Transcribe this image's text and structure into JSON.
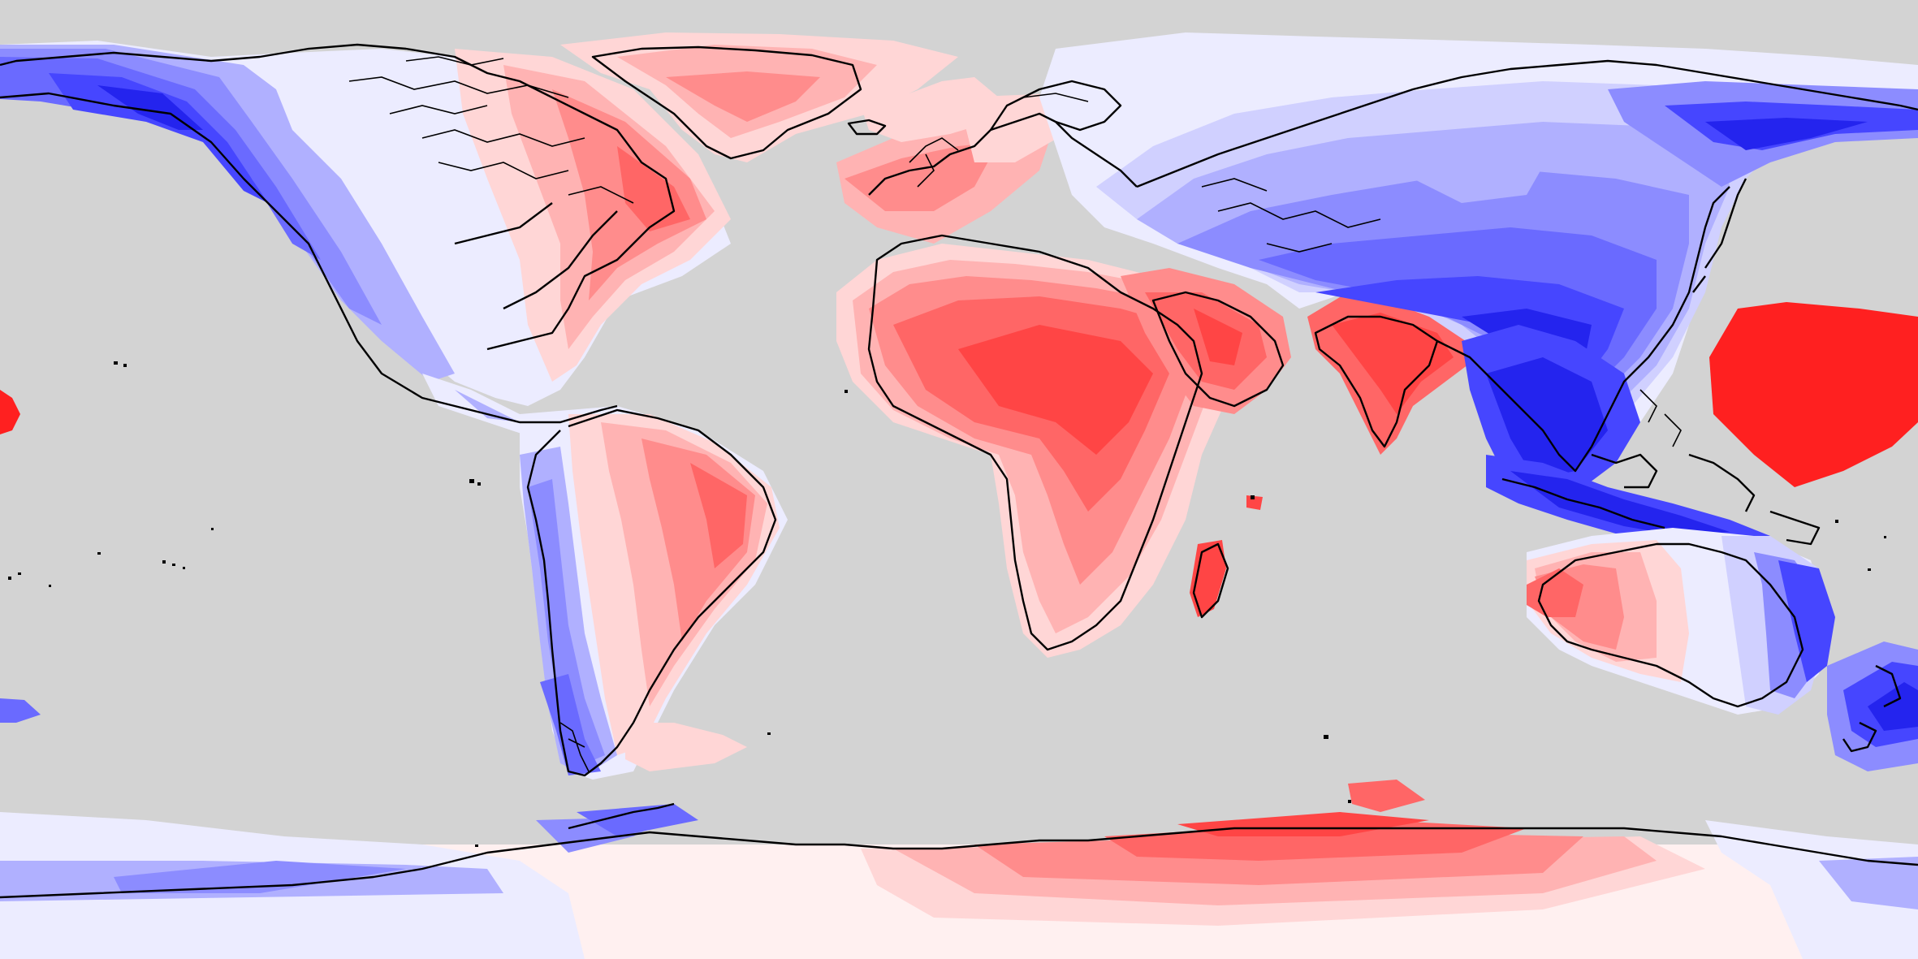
{
  "map": {
    "projection": "equirectangular",
    "colors": {
      "background": "#d3d3d3",
      "coastline": "#000000",
      "red_scale": [
        "#fff0f0",
        "#ffd6d6",
        "#ffb3b3",
        "#ff8c8c",
        "#ff6666",
        "#ff4545",
        "#ff2020"
      ],
      "blue_scale": [
        "#ececff",
        "#d0d0ff",
        "#b0b0ff",
        "#8c8cff",
        "#6a6aff",
        "#4646ff",
        "#2424ee",
        "#1010dd"
      ]
    },
    "regions": [
      {
        "name": "greenland",
        "sign": "positive"
      },
      {
        "name": "eastern-north-america",
        "sign": "positive"
      },
      {
        "name": "western-north-america",
        "sign": "negative"
      },
      {
        "name": "eastern-south-america",
        "sign": "positive"
      },
      {
        "name": "western-south-america",
        "sign": "negative"
      },
      {
        "name": "africa",
        "sign": "positive"
      },
      {
        "name": "western-europe",
        "sign": "positive"
      },
      {
        "name": "arabia",
        "sign": "positive"
      },
      {
        "name": "india",
        "sign": "positive"
      },
      {
        "name": "central-and-east-asia",
        "sign": "negative"
      },
      {
        "name": "western-australia",
        "sign": "positive"
      },
      {
        "name": "eastern-australia",
        "sign": "negative"
      },
      {
        "name": "new-zealand",
        "sign": "negative"
      },
      {
        "name": "central-pacific-patch",
        "sign": "positive"
      },
      {
        "name": "east-antarctica",
        "sign": "positive"
      },
      {
        "name": "west-antarctica",
        "sign": "negative"
      }
    ]
  }
}
